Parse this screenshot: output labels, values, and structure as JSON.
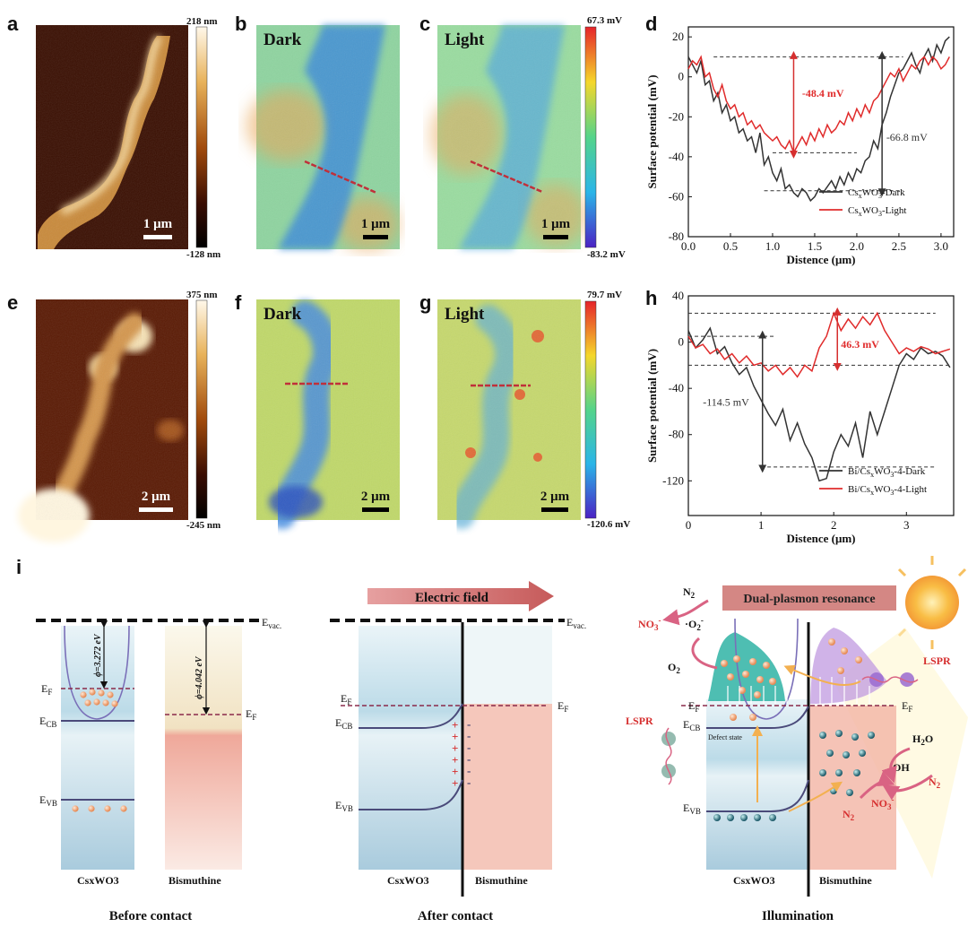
{
  "panels": {
    "a": {
      "label": "a",
      "scale": "1 μm",
      "cb_max": "218 nm",
      "cb_min": "-128 nm"
    },
    "b": {
      "label": "b",
      "title": "Dark",
      "scale": "1 μm"
    },
    "c": {
      "label": "c",
      "title": "Light",
      "scale": "1 μm",
      "cb_max": "67.3 mV",
      "cb_min": "-83.2 mV"
    },
    "e": {
      "label": "e",
      "scale": "2 μm",
      "cb_max": "375 nm",
      "cb_min": "-245 nm"
    },
    "f": {
      "label": "f",
      "title": "Dark",
      "scale": "2 μm"
    },
    "g": {
      "label": "g",
      "title": "Light",
      "scale": "2 μm",
      "cb_max": "79.7 mV",
      "cb_min": "-120.6 mV"
    },
    "i": {
      "label": "i"
    }
  },
  "chart_data": [
    {
      "id": "d",
      "label": "d",
      "type": "line",
      "xlabel": "Distence (μm)",
      "ylabel": "Surface potential (mV)",
      "xlim": [
        0,
        3.15
      ],
      "ylim": [
        -80,
        25
      ],
      "xticks": [
        "0.0",
        "0.5",
        "1.0",
        "1.5",
        "2.0",
        "2.5",
        "3.0"
      ],
      "yticks": [
        "20",
        "0",
        "-20",
        "-40",
        "-60",
        "-80"
      ],
      "series": [
        {
          "name": "CsxWO3-Dark",
          "color": "#333333",
          "x": [
            0,
            0.05,
            0.1,
            0.15,
            0.2,
            0.25,
            0.3,
            0.35,
            0.4,
            0.45,
            0.5,
            0.55,
            0.6,
            0.65,
            0.7,
            0.75,
            0.8,
            0.85,
            0.9,
            0.95,
            1.0,
            1.05,
            1.1,
            1.15,
            1.2,
            1.25,
            1.3,
            1.35,
            1.4,
            1.45,
            1.5,
            1.55,
            1.6,
            1.65,
            1.7,
            1.75,
            1.8,
            1.85,
            1.9,
            1.95,
            2.0,
            2.05,
            2.1,
            2.15,
            2.2,
            2.25,
            2.3,
            2.35,
            2.4,
            2.45,
            2.5,
            2.55,
            2.6,
            2.65,
            2.7,
            2.75,
            2.8,
            2.85,
            2.9,
            2.95,
            3.0,
            3.05,
            3.1
          ],
          "y": [
            10,
            6,
            2,
            8,
            -4,
            -2,
            -12,
            -8,
            -18,
            -14,
            -22,
            -20,
            -28,
            -26,
            -32,
            -30,
            -38,
            -28,
            -44,
            -40,
            -48,
            -52,
            -46,
            -56,
            -54,
            -58,
            -60,
            -56,
            -58,
            -62,
            -60,
            -56,
            -58,
            -55,
            -52,
            -56,
            -50,
            -54,
            -48,
            -52,
            -46,
            -48,
            -42,
            -40,
            -32,
            -36,
            -24,
            -18,
            -10,
            -4,
            2,
            4,
            8,
            12,
            6,
            2,
            10,
            14,
            8,
            16,
            12,
            18,
            20
          ]
        },
        {
          "name": "CsxWO3-Light",
          "color": "#e02b2b",
          "x": [
            0,
            0.05,
            0.1,
            0.15,
            0.2,
            0.25,
            0.3,
            0.35,
            0.4,
            0.45,
            0.5,
            0.55,
            0.6,
            0.65,
            0.7,
            0.75,
            0.8,
            0.85,
            0.9,
            0.95,
            1.0,
            1.05,
            1.1,
            1.15,
            1.2,
            1.25,
            1.3,
            1.35,
            1.4,
            1.45,
            1.5,
            1.55,
            1.6,
            1.65,
            1.7,
            1.75,
            1.8,
            1.85,
            1.9,
            1.95,
            2.0,
            2.05,
            2.1,
            2.15,
            2.2,
            2.25,
            2.3,
            2.35,
            2.4,
            2.45,
            2.5,
            2.55,
            2.6,
            2.65,
            2.7,
            2.75,
            2.8,
            2.85,
            2.9,
            2.95,
            3.0,
            3.05,
            3.1
          ],
          "y": [
            4,
            8,
            6,
            10,
            0,
            2,
            -6,
            -10,
            -4,
            -12,
            -16,
            -14,
            -20,
            -18,
            -24,
            -22,
            -26,
            -24,
            -28,
            -30,
            -32,
            -30,
            -34,
            -36,
            -32,
            -38,
            -34,
            -30,
            -34,
            -28,
            -32,
            -26,
            -30,
            -24,
            -28,
            -26,
            -22,
            -24,
            -18,
            -22,
            -16,
            -20,
            -14,
            -18,
            -12,
            -10,
            -6,
            -2,
            2,
            0,
            4,
            -2,
            2,
            6,
            4,
            8,
            10,
            6,
            10,
            8,
            4,
            6,
            10
          ]
        }
      ],
      "annotations": [
        {
          "text": "-48.4 mV",
          "color": "#e02b2b"
        },
        {
          "text": "-66.8 mV",
          "color": "#333333"
        }
      ],
      "legend": "bottom-right"
    },
    {
      "id": "h",
      "label": "h",
      "type": "line",
      "xlabel": "Distence (μm)",
      "ylabel": "Surface potential (mV)",
      "xlim": [
        0,
        3.65
      ],
      "ylim": [
        -150,
        40
      ],
      "xticks": [
        "0",
        "1",
        "2",
        "3"
      ],
      "yticks": [
        "40",
        "0",
        "-40",
        "-80",
        "-120"
      ],
      "series": [
        {
          "name": "Bi/CsxWO3-4-Dark",
          "color": "#333333",
          "x": [
            0,
            0.1,
            0.2,
            0.3,
            0.4,
            0.5,
            0.6,
            0.7,
            0.8,
            0.9,
            1.0,
            1.1,
            1.2,
            1.3,
            1.4,
            1.5,
            1.6,
            1.7,
            1.8,
            1.9,
            2.0,
            2.1,
            2.2,
            2.3,
            2.4,
            2.5,
            2.6,
            2.7,
            2.8,
            2.9,
            3.0,
            3.1,
            3.2,
            3.3,
            3.4,
            3.5,
            3.6
          ],
          "y": [
            10,
            -5,
            2,
            12,
            -10,
            -4,
            -18,
            -28,
            -22,
            -38,
            -50,
            -62,
            -72,
            -58,
            -85,
            -70,
            -88,
            -100,
            -120,
            -118,
            -95,
            -80,
            -90,
            -70,
            -100,
            -60,
            -80,
            -60,
            -40,
            -20,
            -10,
            -15,
            -5,
            -10,
            -8,
            -12,
            -22
          ]
        },
        {
          "name": "Bi/CsxWO3-4-Light",
          "color": "#e02b2b",
          "x": [
            0,
            0.1,
            0.2,
            0.3,
            0.4,
            0.5,
            0.6,
            0.7,
            0.8,
            0.9,
            1.0,
            1.1,
            1.2,
            1.3,
            1.4,
            1.5,
            1.6,
            1.7,
            1.8,
            1.9,
            2.0,
            2.1,
            2.2,
            2.3,
            2.4,
            2.5,
            2.6,
            2.7,
            2.8,
            2.9,
            3.0,
            3.1,
            3.2,
            3.3,
            3.4,
            3.5,
            3.6
          ],
          "y": [
            5,
            -5,
            -2,
            -10,
            -6,
            -15,
            -10,
            -18,
            -12,
            -20,
            -18,
            -25,
            -20,
            -28,
            -22,
            -30,
            -20,
            -25,
            -5,
            5,
            25,
            10,
            20,
            12,
            22,
            15,
            25,
            10,
            0,
            -10,
            -5,
            -8,
            -4,
            -6,
            -10,
            -8,
            -6
          ]
        }
      ],
      "annotations": [
        {
          "text": "46.3 mV",
          "color": "#e02b2b"
        },
        {
          "text": "-114.5 mV",
          "color": "#333333"
        }
      ],
      "legend": "bottom-right"
    }
  ],
  "diagram": {
    "before": {
      "caption": "Before contact",
      "left": "CsxWO3",
      "right": "Bismuthine",
      "evac": "E",
      "evac_sub": "vac.",
      "ef": "E",
      "ef_sub": "F",
      "ecb": "E",
      "ecb_sub": "CB",
      "evb": "E",
      "evb_sub": "VB",
      "phi1": "ϕ=3.272 eV",
      "phi2": "ϕ=4.042 eV"
    },
    "after": {
      "caption": "After contact",
      "left": "CsxWO3",
      "right": "Bismuthine",
      "field": "Electric field",
      "evac": "E",
      "evac_sub": "vac.",
      "ef": "E",
      "ef_sub": "F",
      "ecb": "E",
      "ecb_sub": "CB",
      "evb": "E",
      "evb_sub": "VB"
    },
    "illum": {
      "caption": "Illumination",
      "left": "CsxWO3",
      "right": "Bismuthine",
      "title": "Dual-plasmon resonance",
      "n2": "N",
      "n2_sub": "2",
      "no3": "NO",
      "no3_sub": "3",
      "no3_sup": "-",
      "o2r": "·O",
      "o2r_sub": "2",
      "o2r_sup": "-",
      "o2": "O",
      "o2_sub": "2",
      "lspr": "LSPR",
      "defect": "Defect state",
      "h2o": "H",
      "h2o_sub": "2",
      "h2o_o": "O",
      "oh": "·OH",
      "ef": "E",
      "ef_sub": "F",
      "ecb": "E",
      "ecb_sub": "CB",
      "evb": "E",
      "evb_sub": "VB"
    },
    "colors": {
      "red": "#d62f2f",
      "pink": "#d96383",
      "teal": "#29b2a2",
      "purple": "#b384d6"
    }
  }
}
